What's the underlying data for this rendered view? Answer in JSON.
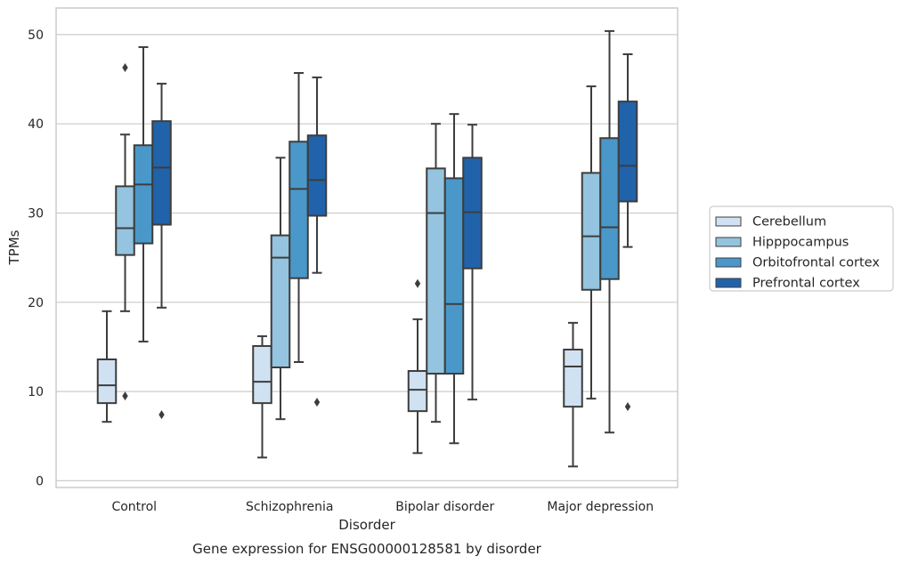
{
  "chart_data": {
    "type": "box",
    "title": "Gene expression for ENSG00000128581 by disorder",
    "xlabel": "Disorder",
    "ylabel": "TPMs",
    "ylim": [
      -0.8,
      52.9
    ],
    "yticks": [
      0,
      10,
      20,
      30,
      40,
      50
    ],
    "grid": "horizontal",
    "legend_position": "right",
    "categories": [
      "Control",
      "Schizophrenia",
      "Bipolar disorder",
      "Major depression"
    ],
    "series": [
      {
        "name": "Cerebellum",
        "color": "#d0e1f2",
        "boxes": [
          {
            "whisker_low": 6.6,
            "q1": 8.7,
            "median": 10.7,
            "q3": 13.6,
            "whisker_high": 19.0,
            "outliers": []
          },
          {
            "whisker_low": 2.6,
            "q1": 8.7,
            "median": 11.1,
            "q3": 15.1,
            "whisker_high": 16.2,
            "outliers": []
          },
          {
            "whisker_low": 3.1,
            "q1": 7.8,
            "median": 10.2,
            "q3": 12.3,
            "whisker_high": 18.1,
            "outliers": [
              22.1
            ]
          },
          {
            "whisker_low": 1.6,
            "q1": 8.3,
            "median": 12.8,
            "q3": 14.7,
            "whisker_high": 17.7,
            "outliers": []
          }
        ]
      },
      {
        "name": "Hipppocampus",
        "color": "#94c4df",
        "boxes": [
          {
            "whisker_low": 19.0,
            "q1": 25.3,
            "median": 28.3,
            "q3": 33.0,
            "whisker_high": 38.8,
            "outliers": [
              46.3,
              9.5
            ]
          },
          {
            "whisker_low": 6.9,
            "q1": 12.7,
            "median": 25.0,
            "q3": 27.5,
            "whisker_high": 36.2,
            "outliers": []
          },
          {
            "whisker_low": 6.6,
            "q1": 12.0,
            "median": 30.0,
            "q3": 35.0,
            "whisker_high": 40.0,
            "outliers": []
          },
          {
            "whisker_low": 9.2,
            "q1": 21.4,
            "median": 27.4,
            "q3": 34.5,
            "whisker_high": 44.2,
            "outliers": []
          }
        ]
      },
      {
        "name": "Orbitofrontal cortex",
        "color": "#4a98c9",
        "boxes": [
          {
            "whisker_low": 15.6,
            "q1": 26.6,
            "median": 33.2,
            "q3": 37.6,
            "whisker_high": 48.6,
            "outliers": []
          },
          {
            "whisker_low": 13.3,
            "q1": 22.7,
            "median": 32.7,
            "q3": 38.0,
            "whisker_high": 45.7,
            "outliers": []
          },
          {
            "whisker_low": 4.2,
            "q1": 12.0,
            "median": 19.8,
            "q3": 33.9,
            "whisker_high": 41.1,
            "outliers": []
          },
          {
            "whisker_low": 5.4,
            "q1": 22.6,
            "median": 28.4,
            "q3": 38.4,
            "whisker_high": 50.4,
            "outliers": []
          }
        ]
      },
      {
        "name": "Prefrontal cortex",
        "color": "#2163aa",
        "boxes": [
          {
            "whisker_low": 19.4,
            "q1": 28.7,
            "median": 35.1,
            "q3": 40.3,
            "whisker_high": 44.5,
            "outliers": [
              7.4
            ]
          },
          {
            "whisker_low": 23.3,
            "q1": 29.7,
            "median": 33.7,
            "q3": 38.7,
            "whisker_high": 45.2,
            "outliers": [
              8.8
            ]
          },
          {
            "whisker_low": 9.1,
            "q1": 23.8,
            "median": 30.1,
            "q3": 36.2,
            "whisker_high": 39.9,
            "outliers": []
          },
          {
            "whisker_low": 26.2,
            "q1": 31.3,
            "median": 35.3,
            "q3": 42.5,
            "whisker_high": 47.8,
            "outliers": [
              8.3
            ]
          }
        ]
      }
    ]
  }
}
